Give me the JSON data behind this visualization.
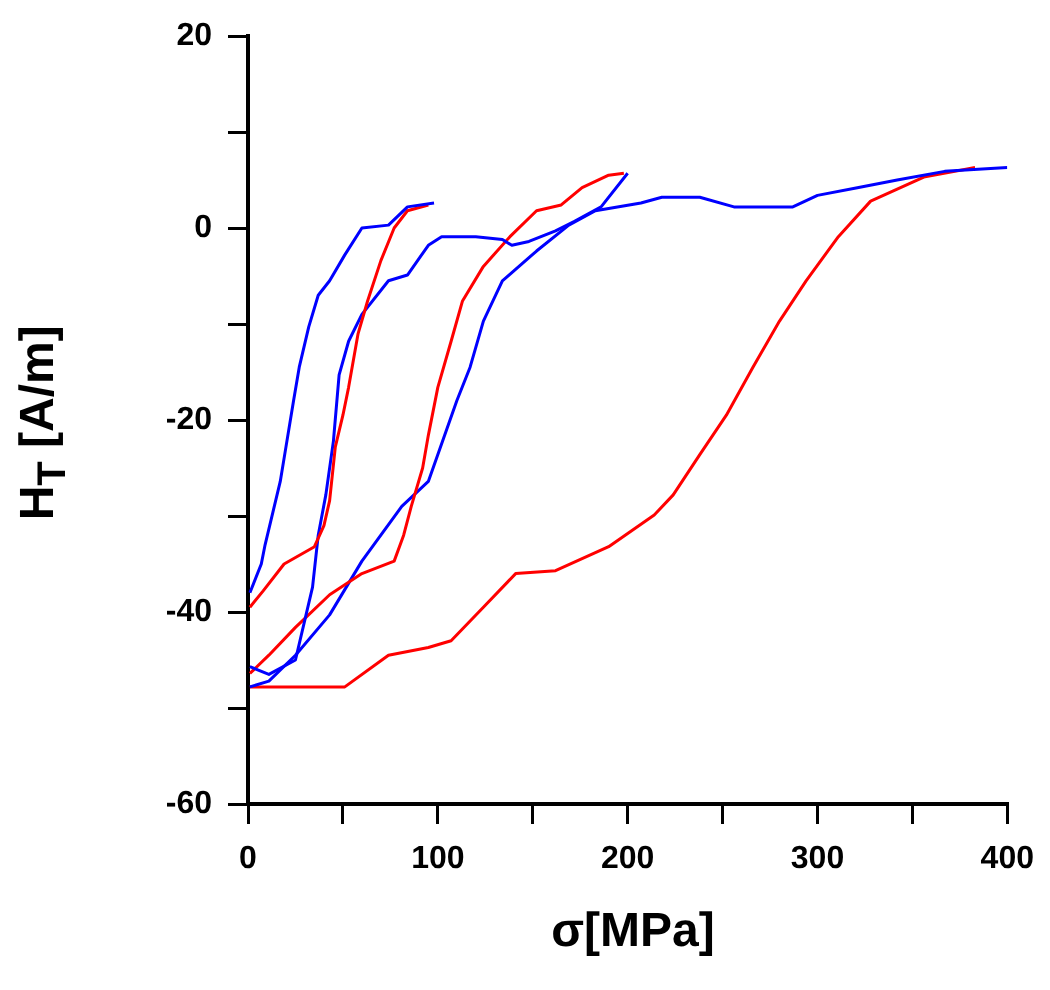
{
  "chart_data": {
    "type": "line",
    "xlabel": "σ[MPa]",
    "ylabel": "H$_{T}$ [A/m]",
    "xlim": [
      0,
      400
    ],
    "xticks": [
      0,
      {
        "value": 50,
        "label": null
      },
      100,
      {
        "value": 150,
        "label": null
      },
      200,
      {
        "value": 250,
        "label": null
      },
      300,
      {
        "value": 350,
        "label": null
      },
      400
    ],
    "ylim": [
      -60,
      20
    ],
    "yticks": [
      -60,
      {
        "value": -50,
        "label": null
      },
      -40,
      {
        "value": -30,
        "label": null
      },
      -20,
      {
        "value": -10,
        "label": null
      },
      0,
      {
        "value": 10,
        "label": null
      },
      20
    ],
    "grid": false,
    "legend": false,
    "marker": "none",
    "line_style": "solid",
    "series": [
      {
        "color": "#0000ff",
        "x": [
          1,
          7,
          9,
          17,
          20,
          24,
          27,
          32,
          37,
          43,
          51,
          60,
          74,
          84,
          98
        ],
        "values": [
          -38,
          -35,
          -33,
          -26.4,
          -22.8,
          -18,
          -14.5,
          -10.3,
          -7,
          -5.5,
          -2.8,
          0,
          0.3,
          2.2,
          2.6
        ]
      },
      {
        "color": "#ff0000",
        "x": [
          1,
          8,
          19,
          35,
          40,
          43,
          46,
          50,
          53,
          58,
          63,
          70,
          77,
          84,
          95
        ],
        "values": [
          -39.5,
          -37.8,
          -35,
          -33.2,
          -31,
          -28.4,
          -22.8,
          -19.5,
          -16.6,
          -11,
          -7.6,
          -3.4,
          0,
          1.8,
          2.4
        ]
      },
      {
        "color": "#0000ff",
        "x": [
          1,
          11,
          25,
          34,
          37,
          41,
          45,
          48,
          53,
          60,
          74,
          84,
          95,
          102,
          120,
          134,
          139,
          148,
          162,
          172,
          186,
          200
        ],
        "values": [
          -45.7,
          -46.5,
          -45,
          -37.4,
          -32,
          -27.8,
          -22.2,
          -15.3,
          -11.8,
          -9,
          -5.5,
          -4.9,
          -1.8,
          -0.9,
          -0.9,
          -1.2,
          -1.8,
          -1.4,
          -0.3,
          0.7,
          2.2,
          5.7
        ]
      },
      {
        "color": "#ff0000",
        "x": [
          1,
          11,
          25,
          43,
          60,
          77,
          82,
          86,
          92,
          95,
          100,
          107,
          113,
          124,
          138,
          152,
          165,
          176,
          190,
          198
        ],
        "values": [
          -46.4,
          -44.5,
          -41.6,
          -38.2,
          -36,
          -34.7,
          -32,
          -29,
          -25,
          -21.6,
          -16.6,
          -11.8,
          -7.6,
          -4,
          -0.9,
          1.8,
          2.4,
          4.2,
          5.5,
          5.7
        ]
      },
      {
        "color": "#0000ff",
        "x": [
          1,
          11,
          25,
          43,
          60,
          81,
          95,
          110,
          117,
          124,
          134,
          152,
          169,
          183,
          207,
          218,
          238,
          256,
          287,
          300,
          321,
          342,
          367,
          400
        ],
        "values": [
          -47.8,
          -47.2,
          -44.5,
          -40.3,
          -34.7,
          -29,
          -26.4,
          -18,
          -14.5,
          -9.7,
          -5.5,
          -2.4,
          0.3,
          1.8,
          2.6,
          3.2,
          3.2,
          2.2,
          2.2,
          3.4,
          4.2,
          5,
          5.9,
          6.3
        ]
      },
      {
        "color": "#ff0000",
        "x": [
          1,
          51,
          74,
          95,
          107,
          124,
          141,
          162,
          190,
          214,
          224,
          238,
          252,
          266,
          280,
          294,
          311,
          328,
          356,
          383
        ],
        "values": [
          -47.8,
          -47.8,
          -44.5,
          -43.7,
          -43,
          -39.5,
          -36,
          -35.7,
          -33.2,
          -29.9,
          -27.8,
          -23.6,
          -19.5,
          -14.5,
          -9.7,
          -5.5,
          -0.9,
          2.8,
          5.3,
          6.3
        ]
      }
    ]
  }
}
